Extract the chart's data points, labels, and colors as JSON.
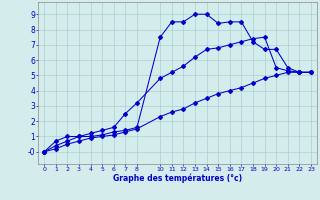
{
  "xlabel": "Graphe des températures (°c)",
  "bg_color": "#d4ecec",
  "grid_color": "#a8d0d0",
  "line_color": "#0000cc",
  "xlim": [
    -0.5,
    23.5
  ],
  "ylim": [
    -0.8,
    9.8
  ],
  "xtick_vals": [
    0,
    1,
    2,
    3,
    4,
    5,
    6,
    7,
    8,
    10,
    11,
    12,
    13,
    14,
    15,
    16,
    17,
    18,
    19,
    20,
    21,
    22,
    23
  ],
  "ytick_vals": [
    0,
    1,
    2,
    3,
    4,
    5,
    6,
    7,
    8,
    9
  ],
  "line1_x": [
    0,
    1,
    2,
    3,
    4,
    5,
    6,
    7,
    8,
    10,
    11,
    12,
    13,
    14,
    15,
    16,
    17,
    18,
    19,
    20,
    21,
    22,
    23
  ],
  "line1_y": [
    0.0,
    0.7,
    1.0,
    1.0,
    1.0,
    1.1,
    1.3,
    1.4,
    1.6,
    7.5,
    8.5,
    8.5,
    9.0,
    9.0,
    8.4,
    8.5,
    8.5,
    7.2,
    6.7,
    6.7,
    5.5,
    5.2,
    5.2
  ],
  "line2_x": [
    0,
    1,
    2,
    3,
    4,
    5,
    6,
    7,
    8,
    10,
    11,
    12,
    13,
    14,
    15,
    16,
    17,
    18,
    19,
    20,
    21,
    22,
    23
  ],
  "line2_y": [
    0.0,
    0.4,
    0.7,
    1.0,
    1.2,
    1.4,
    1.6,
    2.5,
    3.2,
    4.8,
    5.2,
    5.6,
    6.2,
    6.7,
    6.8,
    7.0,
    7.2,
    7.4,
    7.5,
    5.5,
    5.3,
    5.2,
    5.2
  ],
  "line3_x": [
    0,
    1,
    2,
    3,
    4,
    5,
    6,
    7,
    8,
    10,
    11,
    12,
    13,
    14,
    15,
    16,
    17,
    18,
    19,
    20,
    21,
    22,
    23
  ],
  "line3_y": [
    0.0,
    0.2,
    0.5,
    0.7,
    0.9,
    1.0,
    1.1,
    1.3,
    1.5,
    2.3,
    2.6,
    2.8,
    3.2,
    3.5,
    3.8,
    4.0,
    4.2,
    4.5,
    4.8,
    5.0,
    5.2,
    5.2,
    5.2
  ]
}
